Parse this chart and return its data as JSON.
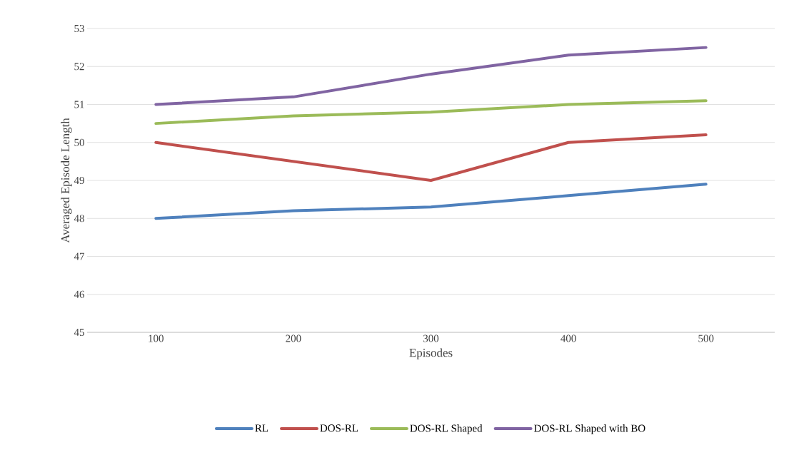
{
  "chart_data": {
    "type": "line",
    "xlabel": "Episodes",
    "ylabel": "Averaged Episode Length",
    "categories": [
      "100",
      "200",
      "300",
      "400",
      "500"
    ],
    "series": [
      {
        "name": "RL",
        "color": "#4f81bd",
        "values": [
          48,
          48.2,
          48.3,
          48.6,
          48.9
        ]
      },
      {
        "name": "DOS-RL",
        "color": "#c0504d",
        "values": [
          50,
          49.5,
          49,
          50,
          50.2
        ]
      },
      {
        "name": "DOS-RL Shaped",
        "color": "#9bbb59",
        "values": [
          50.5,
          50.7,
          50.8,
          51,
          51.1
        ]
      },
      {
        "name": "DOS-RL Shaped with BO",
        "color": "#8064a2",
        "values": [
          51,
          51.2,
          51.8,
          52.3,
          52.5
        ]
      }
    ],
    "ylim": [
      45,
      53
    ],
    "yticks": [
      45,
      46,
      47,
      48,
      49,
      50,
      51,
      52,
      53
    ],
    "grid": "y",
    "legend": "bottom"
  }
}
